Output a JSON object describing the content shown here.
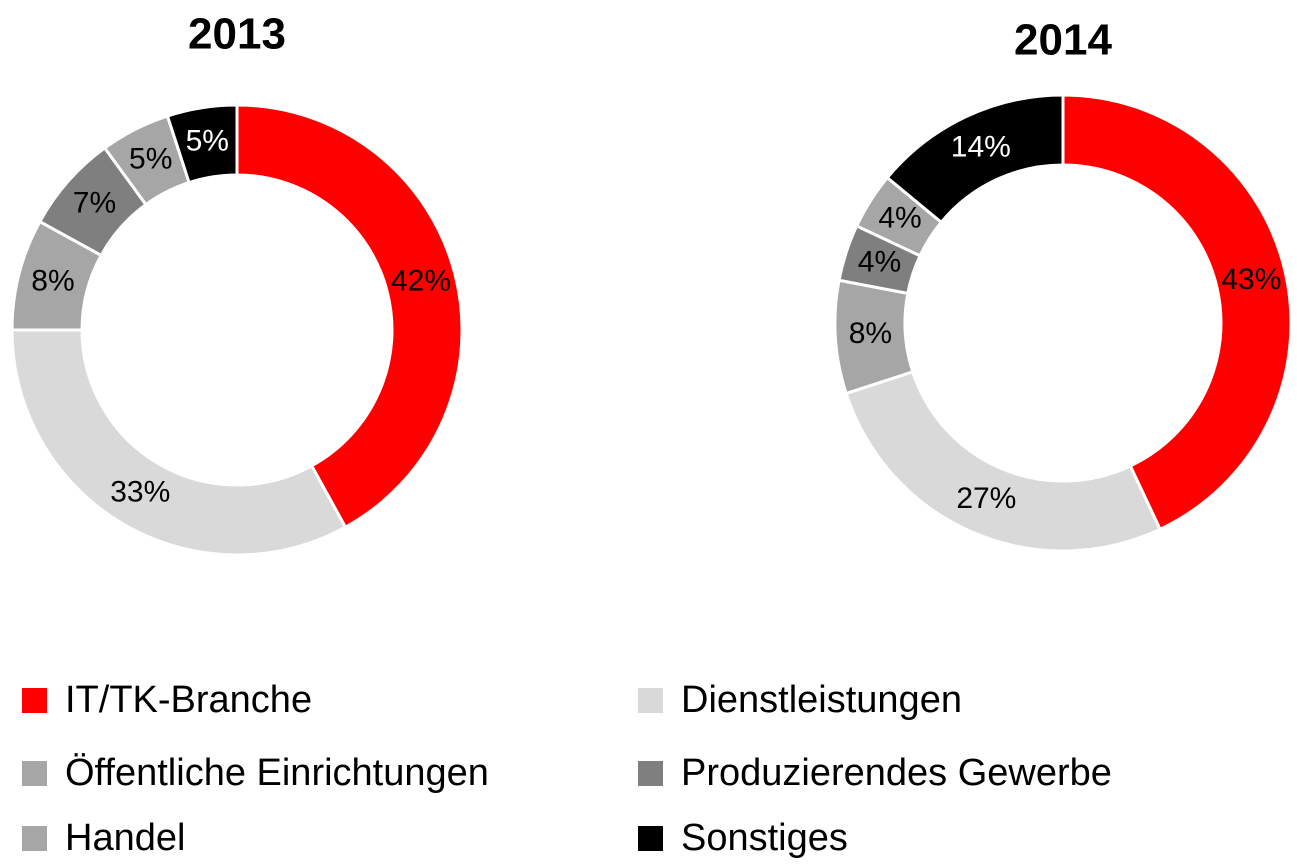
{
  "chart_data": [
    {
      "type": "donut",
      "title": "2013",
      "categories": [
        "IT/TK-Branche",
        "Dienstleistungen",
        "Öffentliche Einrichtungen",
        "Produzierendes Gewerbe",
        "Handel",
        "Sonstiges"
      ],
      "values": [
        42,
        33,
        8,
        7,
        5,
        5
      ],
      "value_labels": [
        "42%",
        "33%",
        "8%",
        "7%",
        "5%",
        "5%"
      ],
      "colors": [
        "#ff0000",
        "#d9d9d9",
        "#a6a6a6",
        "#7f7f7f",
        "#a6a6a6",
        "#000000"
      ]
    },
    {
      "type": "donut",
      "title": "2014",
      "categories": [
        "IT/TK-Branche",
        "Dienstleistungen",
        "Öffentliche Einrichtungen",
        "Produzierendes Gewerbe",
        "Handel",
        "Sonstiges"
      ],
      "values": [
        43,
        27,
        8,
        4,
        4,
        14
      ],
      "value_labels": [
        "43%",
        "27%",
        "8%",
        "4%",
        "4%",
        "14%"
      ],
      "colors": [
        "#ff0000",
        "#d9d9d9",
        "#a6a6a6",
        "#7f7f7f",
        "#a6a6a6",
        "#000000"
      ]
    }
  ]
}
